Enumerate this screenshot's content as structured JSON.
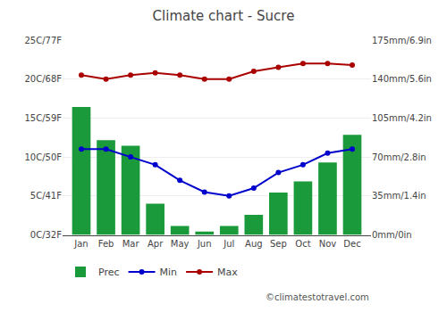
{
  "chart_data": {
    "type": "bar",
    "title": "Climate chart - Sucre",
    "categories": [
      "Jan",
      "Feb",
      "Mar",
      "Apr",
      "May",
      "Jun",
      "Jul",
      "Aug",
      "Sep",
      "Oct",
      "Nov",
      "Dec"
    ],
    "series": [
      {
        "name": "Prec",
        "type": "bar",
        "color": "#1a9a3a",
        "axis": "y2",
        "values": [
          115,
          85,
          80,
          28,
          8,
          3,
          8,
          18,
          38,
          48,
          65,
          90
        ]
      },
      {
        "name": "Min",
        "type": "line",
        "color": "#0000cc",
        "marker": "circle",
        "values": [
          11,
          11,
          10,
          9,
          7,
          5.5,
          5,
          6,
          8,
          9,
          10.5,
          11
        ]
      },
      {
        "name": "Max",
        "type": "line",
        "color": "#aa0000",
        "marker": "circle",
        "values": [
          20.5,
          20,
          20.5,
          20.8,
          20.5,
          20,
          20,
          21,
          21.5,
          22,
          22,
          21.8
        ]
      }
    ],
    "ylim": [
      0,
      25
    ],
    "yticks": [
      {
        "value": 0,
        "label": "0C/32F"
      },
      {
        "value": 5,
        "label": "5C/41F"
      },
      {
        "value": 10,
        "label": "10C/50F"
      },
      {
        "value": 15,
        "label": "15C/59F"
      },
      {
        "value": 20,
        "label": "20C/68F"
      },
      {
        "value": 25,
        "label": "25C/77F"
      }
    ],
    "y2lim": [
      0,
      175
    ],
    "y2ticks": [
      {
        "value": 0,
        "label": "0mm/0in"
      },
      {
        "value": 35,
        "label": "35mm/1.4in"
      },
      {
        "value": 70,
        "label": "70mm/2.8in"
      },
      {
        "value": 105,
        "label": "105mm/4.2in"
      },
      {
        "value": 140,
        "label": "140mm/5.6in"
      },
      {
        "value": 175,
        "label": "175mm/6.9in"
      }
    ],
    "grid": true,
    "legend": "bottom",
    "annotations": [
      "©climatestotravel.com"
    ]
  }
}
